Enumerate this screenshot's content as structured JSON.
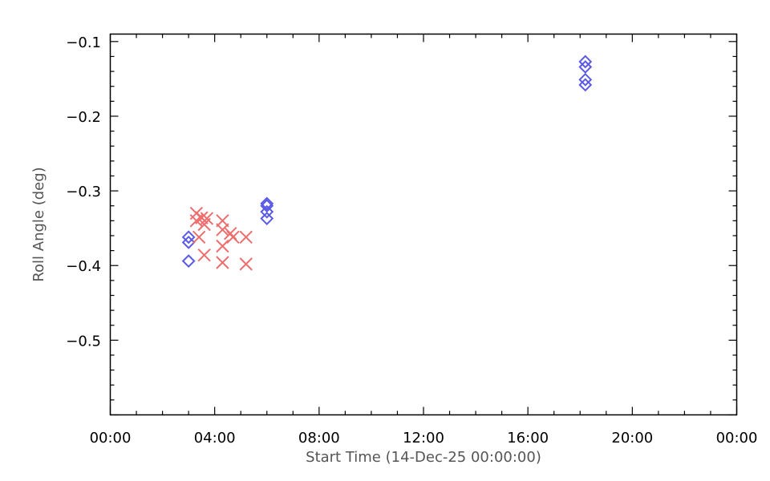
{
  "chart_data": {
    "type": "scatter",
    "xlabel": "Start Time (14-Dec-25 00:00:00)",
    "ylabel": "Roll Angle (deg)",
    "x_unit": "hours",
    "xlim": [
      0,
      24
    ],
    "ylim": [
      -0.6,
      -0.1
    ],
    "y_reversed": true,
    "x_ticks": [
      0,
      4,
      8,
      12,
      16,
      20,
      24
    ],
    "x_tick_labels": [
      "00:00",
      "04:00",
      "08:00",
      "12:00",
      "16:00",
      "20:00",
      "00:00"
    ],
    "y_ticks": [
      -0.1,
      -0.2,
      -0.3,
      -0.4,
      -0.5
    ],
    "y_tick_labels": [
      "−0.1",
      "−0.2",
      "−0.3",
      "−0.4",
      "−0.5"
    ],
    "grid": false,
    "series": [
      {
        "marker": "diamond",
        "color": "#5a5ae6",
        "points": [
          {
            "x": 3.0,
            "y": -0.362
          },
          {
            "x": 3.0,
            "y": -0.369
          },
          {
            "x": 3.0,
            "y": -0.394
          },
          {
            "x": 6.0,
            "y": -0.317
          },
          {
            "x": 6.0,
            "y": -0.32
          },
          {
            "x": 6.0,
            "y": -0.328
          },
          {
            "x": 6.0,
            "y": -0.337
          },
          {
            "x": 18.2,
            "y": -0.127
          },
          {
            "x": 18.2,
            "y": -0.134
          },
          {
            "x": 18.2,
            "y": -0.151
          },
          {
            "x": 18.2,
            "y": -0.158
          }
        ]
      },
      {
        "marker": "x",
        "color": "#ee6e6e",
        "points": [
          {
            "x": 3.3,
            "y": -0.33
          },
          {
            "x": 3.3,
            "y": -0.34
          },
          {
            "x": 3.4,
            "y": -0.362
          },
          {
            "x": 3.5,
            "y": -0.336
          },
          {
            "x": 3.6,
            "y": -0.345
          },
          {
            "x": 3.7,
            "y": -0.337
          },
          {
            "x": 3.6,
            "y": -0.386
          },
          {
            "x": 4.3,
            "y": -0.34
          },
          {
            "x": 4.3,
            "y": -0.352
          },
          {
            "x": 4.3,
            "y": -0.374
          },
          {
            "x": 4.3,
            "y": -0.396
          },
          {
            "x": 4.6,
            "y": -0.357
          },
          {
            "x": 4.7,
            "y": -0.362
          },
          {
            "x": 5.2,
            "y": -0.362
          },
          {
            "x": 5.2,
            "y": -0.398
          }
        ]
      }
    ]
  }
}
